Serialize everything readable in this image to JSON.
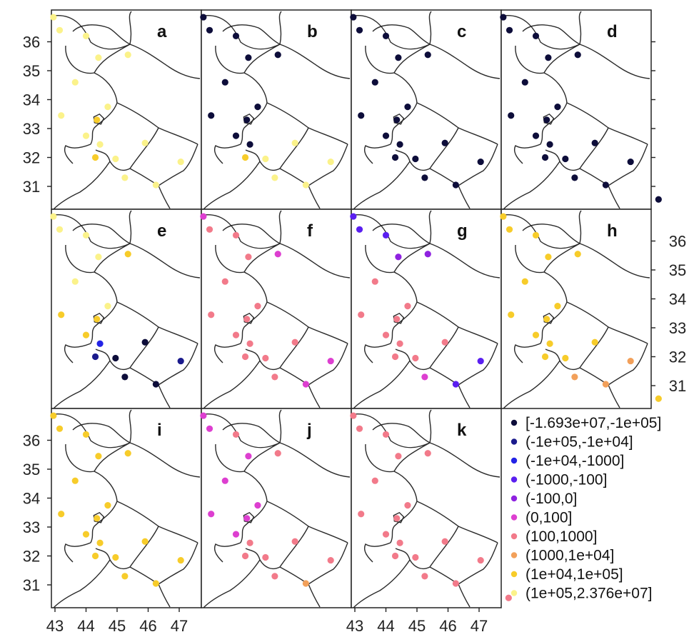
{
  "figure": {
    "x_ticks": [
      "43",
      "44",
      "45",
      "46",
      "47"
    ],
    "y_ticks": [
      "31",
      "32",
      "33",
      "34",
      "35",
      "36"
    ]
  },
  "legend": {
    "classes": [
      {
        "label": "[-1.693e+07,-1e+05]",
        "color": "#0d0d3a"
      },
      {
        "label": "(-1e+05,-1e+04]",
        "color": "#1a1a8c"
      },
      {
        "label": "(-1e+04,-1000]",
        "color": "#2323e6"
      },
      {
        "label": "(-1000,-100]",
        "color": "#5a1ff0"
      },
      {
        "label": "(-100,0]",
        "color": "#8f22e0"
      },
      {
        "label": "(0,100]",
        "color": "#dd3fd0"
      },
      {
        "label": "(100,1000]",
        "color": "#f27a8a"
      },
      {
        "label": "(1000,1e+04]",
        "color": "#f2a05a"
      },
      {
        "label": "(1e+04,1e+05]",
        "color": "#f7cc2a"
      },
      {
        "label": "(1e+05,2.376e+07]",
        "color": "#fbf28a"
      }
    ]
  },
  "map": {
    "stations": [
      {
        "lon": 42.95,
        "lat": 36.85
      },
      {
        "lon": 43.15,
        "lat": 36.4
      },
      {
        "lon": 44.0,
        "lat": 36.2
      },
      {
        "lon": 45.35,
        "lat": 35.55
      },
      {
        "lon": 44.4,
        "lat": 35.45
      },
      {
        "lon": 43.65,
        "lat": 34.6
      },
      {
        "lon": 44.7,
        "lat": 33.75
      },
      {
        "lon": 43.2,
        "lat": 33.45
      },
      {
        "lon": 44.35,
        "lat": 33.3
      },
      {
        "lon": 44.0,
        "lat": 32.75
      },
      {
        "lon": 44.45,
        "lat": 32.45
      },
      {
        "lon": 45.9,
        "lat": 32.5
      },
      {
        "lon": 44.3,
        "lat": 32.0
      },
      {
        "lon": 44.95,
        "lat": 31.95
      },
      {
        "lon": 47.05,
        "lat": 31.85
      },
      {
        "lon": 45.25,
        "lat": 31.3
      },
      {
        "lon": 46.25,
        "lat": 31.05
      },
      {
        "lon": 47.95,
        "lat": 30.55
      }
    ]
  },
  "panels": [
    {
      "label": "a",
      "classes": [
        9,
        9,
        9,
        9,
        9,
        9,
        9,
        9,
        8,
        9,
        9,
        9,
        8,
        9,
        9,
        9,
        9,
        9
      ]
    },
    {
      "label": "b",
      "classes": [
        0,
        0,
        0,
        0,
        0,
        0,
        0,
        0,
        0,
        0,
        0,
        9,
        8,
        9,
        9,
        9,
        9,
        9
      ]
    },
    {
      "label": "c",
      "classes": [
        0,
        0,
        0,
        0,
        0,
        0,
        0,
        0,
        0,
        0,
        0,
        0,
        0,
        0,
        0,
        0,
        0,
        0
      ]
    },
    {
      "label": "d",
      "classes": [
        0,
        0,
        0,
        0,
        0,
        0,
        0,
        0,
        0,
        0,
        0,
        0,
        0,
        0,
        0,
        0,
        0,
        0
      ]
    },
    {
      "label": "e",
      "classes": [
        9,
        9,
        9,
        8,
        9,
        9,
        9,
        8,
        8,
        8,
        2,
        0,
        1,
        0,
        1,
        0,
        0,
        0
      ]
    },
    {
      "label": "f",
      "classes": [
        5,
        6,
        6,
        5,
        6,
        6,
        6,
        6,
        6,
        6,
        6,
        6,
        6,
        6,
        5,
        6,
        5,
        5
      ]
    },
    {
      "label": "g",
      "classes": [
        3,
        3,
        3,
        4,
        4,
        6,
        6,
        6,
        6,
        6,
        6,
        6,
        6,
        6,
        3,
        5,
        3,
        3
      ]
    },
    {
      "label": "h",
      "classes": [
        8,
        8,
        8,
        8,
        8,
        8,
        8,
        8,
        8,
        8,
        8,
        8,
        8,
        8,
        7,
        7,
        7,
        8
      ]
    },
    {
      "label": "i",
      "classes": [
        8,
        8,
        8,
        8,
        8,
        8,
        8,
        8,
        8,
        8,
        8,
        8,
        8,
        8,
        8,
        8,
        8,
        8
      ]
    },
    {
      "label": "j",
      "classes": [
        5,
        5,
        6,
        6,
        5,
        5,
        5,
        5,
        5,
        5,
        6,
        6,
        6,
        6,
        6,
        6,
        7,
        6
      ]
    },
    {
      "label": "k",
      "classes": [
        6,
        6,
        6,
        6,
        6,
        6,
        6,
        6,
        6,
        6,
        6,
        6,
        6,
        6,
        6,
        6,
        6,
        6
      ]
    }
  ]
}
